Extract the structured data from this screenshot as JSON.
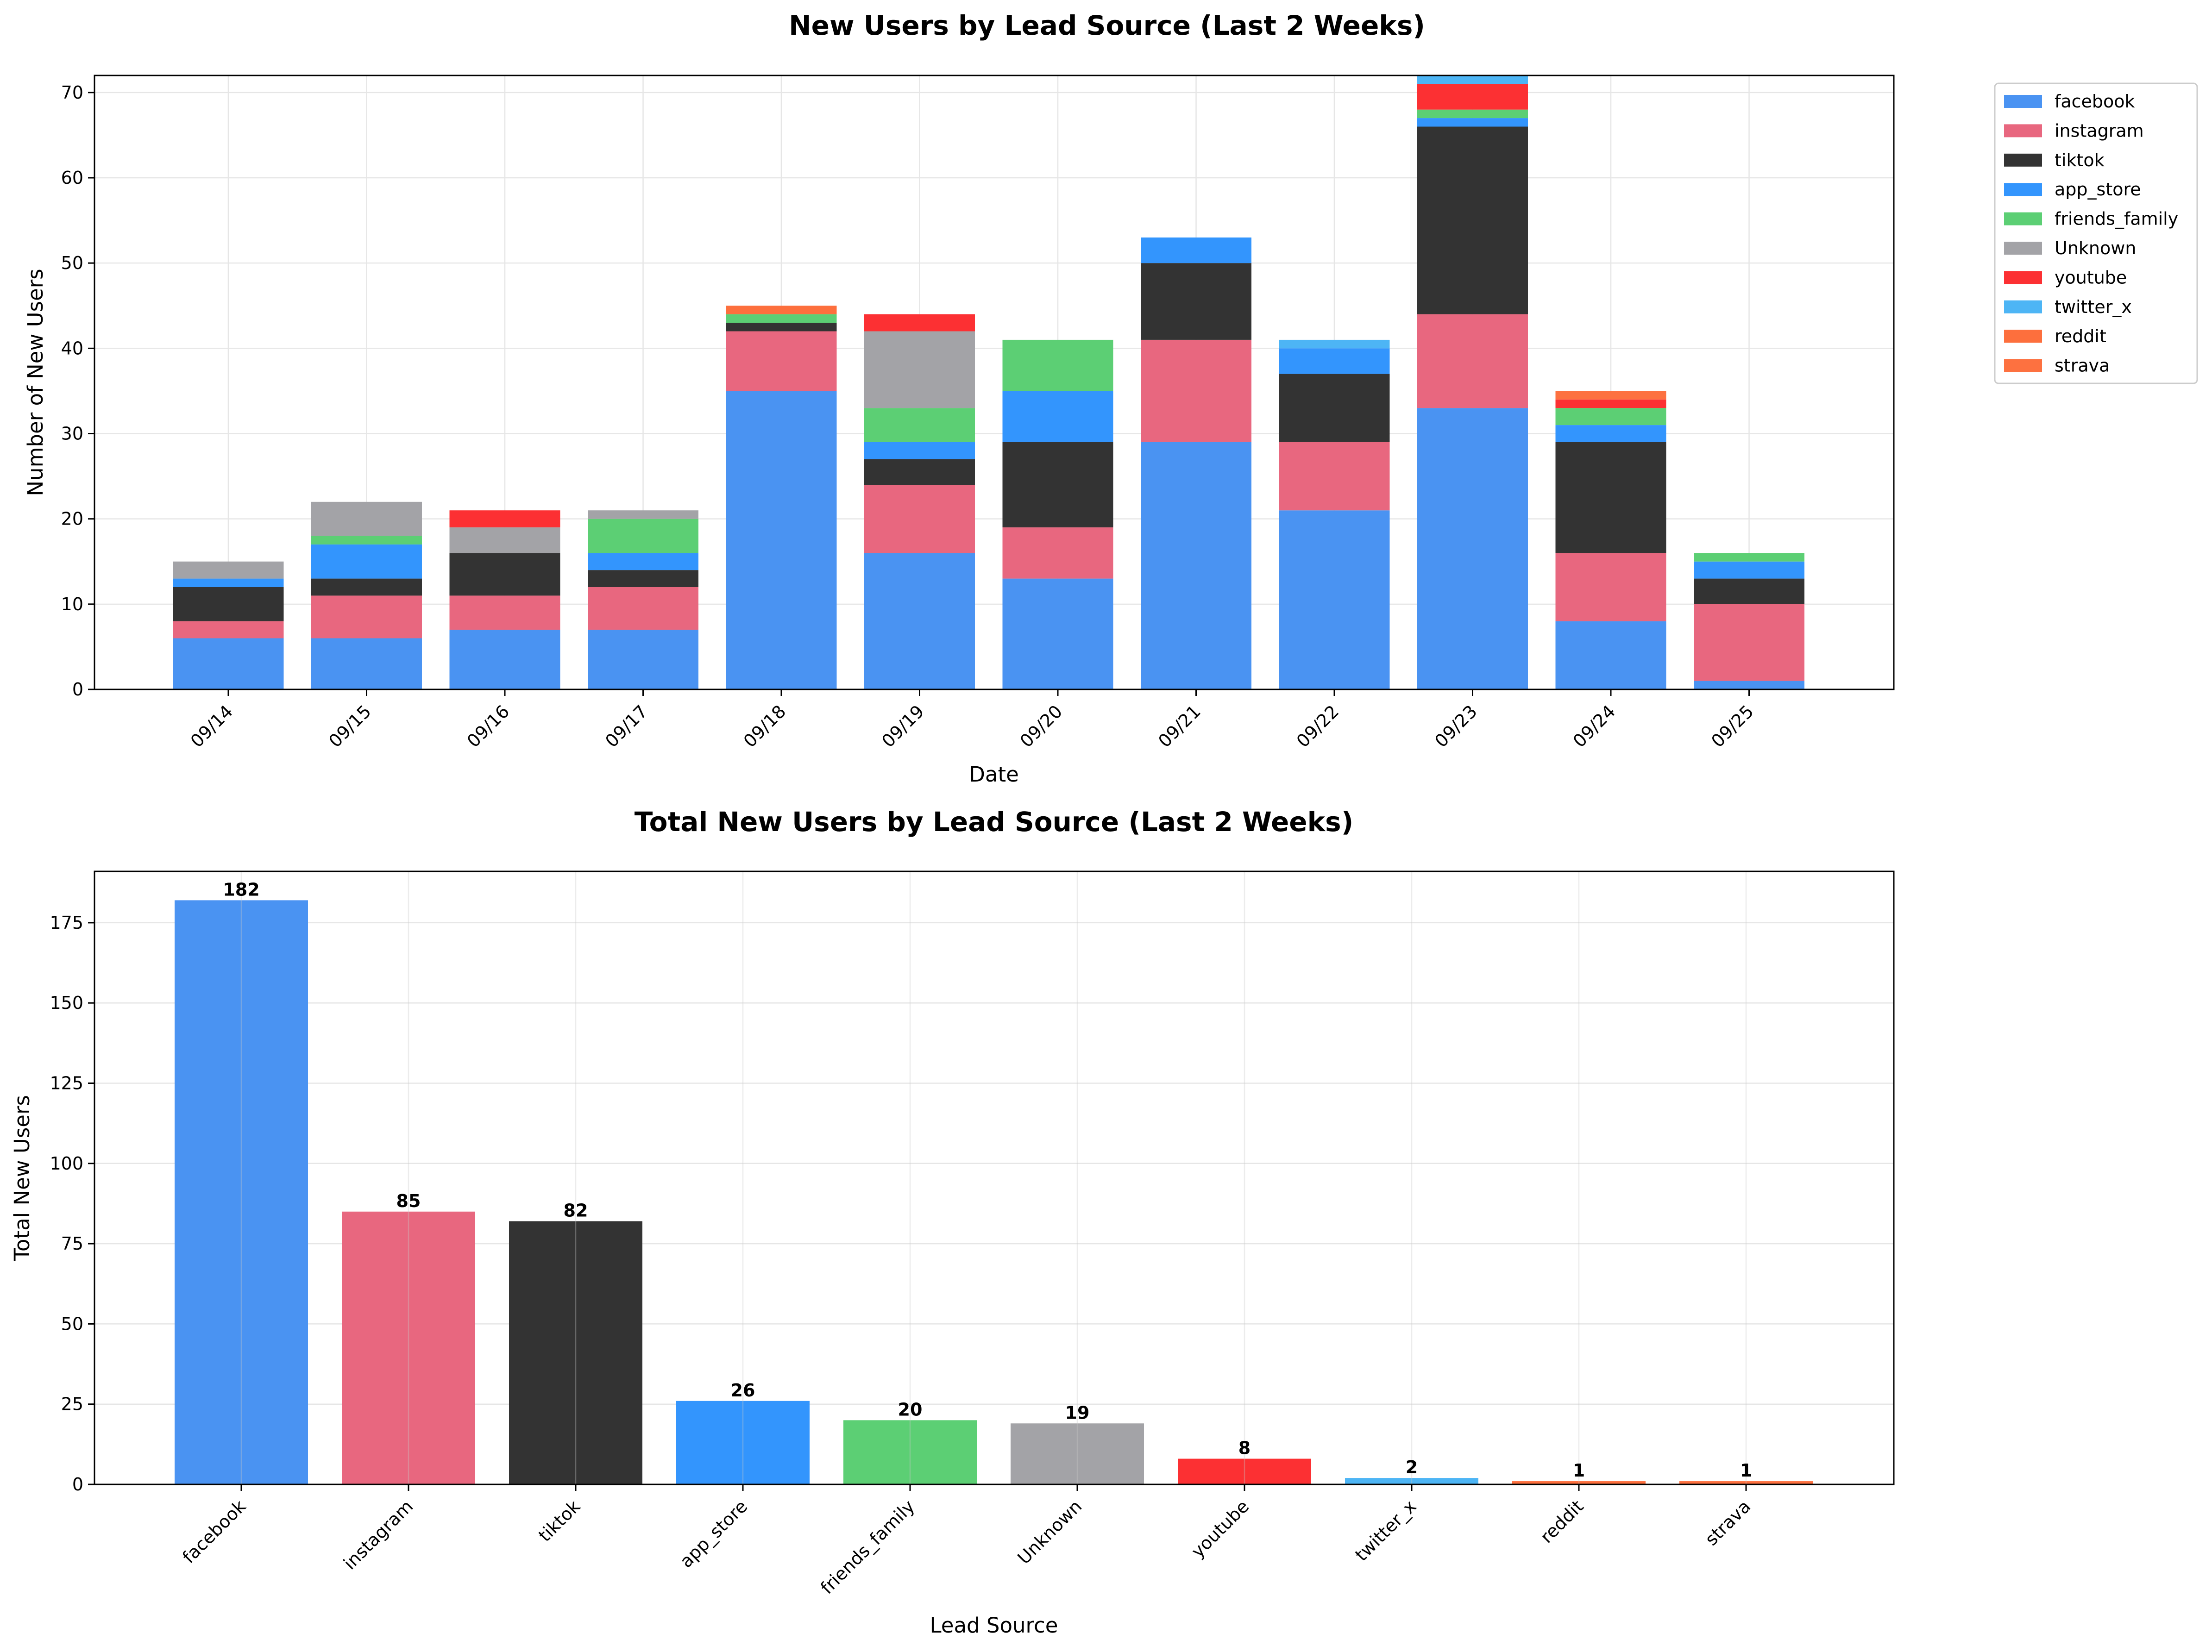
{
  "colors": {
    "facebook": "#4a93f2",
    "instagram": "#e8677f",
    "tiktok": "#333333",
    "app_store": "#3395fd",
    "friends_family": "#5ccf74",
    "Unknown": "#a3a3a7",
    "youtube": "#fc3033",
    "twitter_x": "#4db5f5",
    "reddit": "#fd6f3d",
    "strava": "#fd7140"
  },
  "chart_data": [
    {
      "type": "bar",
      "stacked": true,
      "title": "New Users by Lead Source (Last 2 Weeks)",
      "xlabel": "Date",
      "ylabel": "Number of New Users",
      "ylim": [
        0,
        72
      ],
      "yticks": [
        0,
        10,
        20,
        30,
        40,
        50,
        60,
        70
      ],
      "grid": true,
      "legend_position": "outside-right",
      "categories": [
        "09/14",
        "09/15",
        "09/16",
        "09/17",
        "09/18",
        "09/19",
        "09/20",
        "09/21",
        "09/22",
        "09/23",
        "09/24",
        "09/25"
      ],
      "series": [
        {
          "name": "facebook",
          "values": [
            6,
            6,
            7,
            7,
            35,
            16,
            13,
            29,
            21,
            33,
            8,
            1
          ]
        },
        {
          "name": "instagram",
          "values": [
            2,
            5,
            4,
            5,
            7,
            8,
            6,
            12,
            8,
            11,
            8,
            9
          ]
        },
        {
          "name": "tiktok",
          "values": [
            4,
            2,
            5,
            2,
            1,
            3,
            10,
            9,
            8,
            22,
            13,
            3
          ]
        },
        {
          "name": "app_store",
          "values": [
            1,
            4,
            0,
            2,
            0,
            2,
            6,
            3,
            3,
            1,
            2,
            2
          ]
        },
        {
          "name": "friends_family",
          "values": [
            0,
            1,
            0,
            4,
            1,
            4,
            6,
            0,
            0,
            1,
            2,
            1
          ]
        },
        {
          "name": "Unknown",
          "values": [
            2,
            4,
            3,
            1,
            0,
            9,
            0,
            0,
            0,
            0,
            0,
            0
          ]
        },
        {
          "name": "youtube",
          "values": [
            0,
            0,
            2,
            0,
            0,
            2,
            0,
            0,
            0,
            3,
            1,
            0
          ]
        },
        {
          "name": "twitter_x",
          "values": [
            0,
            0,
            0,
            0,
            0,
            0,
            0,
            0,
            1,
            1,
            0,
            0
          ]
        },
        {
          "name": "reddit",
          "values": [
            0,
            0,
            0,
            0,
            1,
            0,
            0,
            0,
            0,
            0,
            0,
            0
          ]
        },
        {
          "name": "strava",
          "values": [
            0,
            0,
            0,
            0,
            0,
            0,
            0,
            0,
            0,
            0,
            1,
            0
          ]
        }
      ]
    },
    {
      "type": "bar",
      "title": "Total New Users by Lead Source (Last 2 Weeks)",
      "xlabel": "Lead Source",
      "ylabel": "Total New Users",
      "ylim": [
        0,
        191
      ],
      "yticks": [
        0,
        25,
        50,
        75,
        100,
        125,
        150,
        175
      ],
      "grid": true,
      "categories": [
        "facebook",
        "instagram",
        "tiktok",
        "app_store",
        "friends_family",
        "Unknown",
        "youtube",
        "twitter_x",
        "reddit",
        "strava"
      ],
      "values": [
        182,
        85,
        82,
        26,
        20,
        19,
        8,
        2,
        1,
        1
      ]
    }
  ]
}
